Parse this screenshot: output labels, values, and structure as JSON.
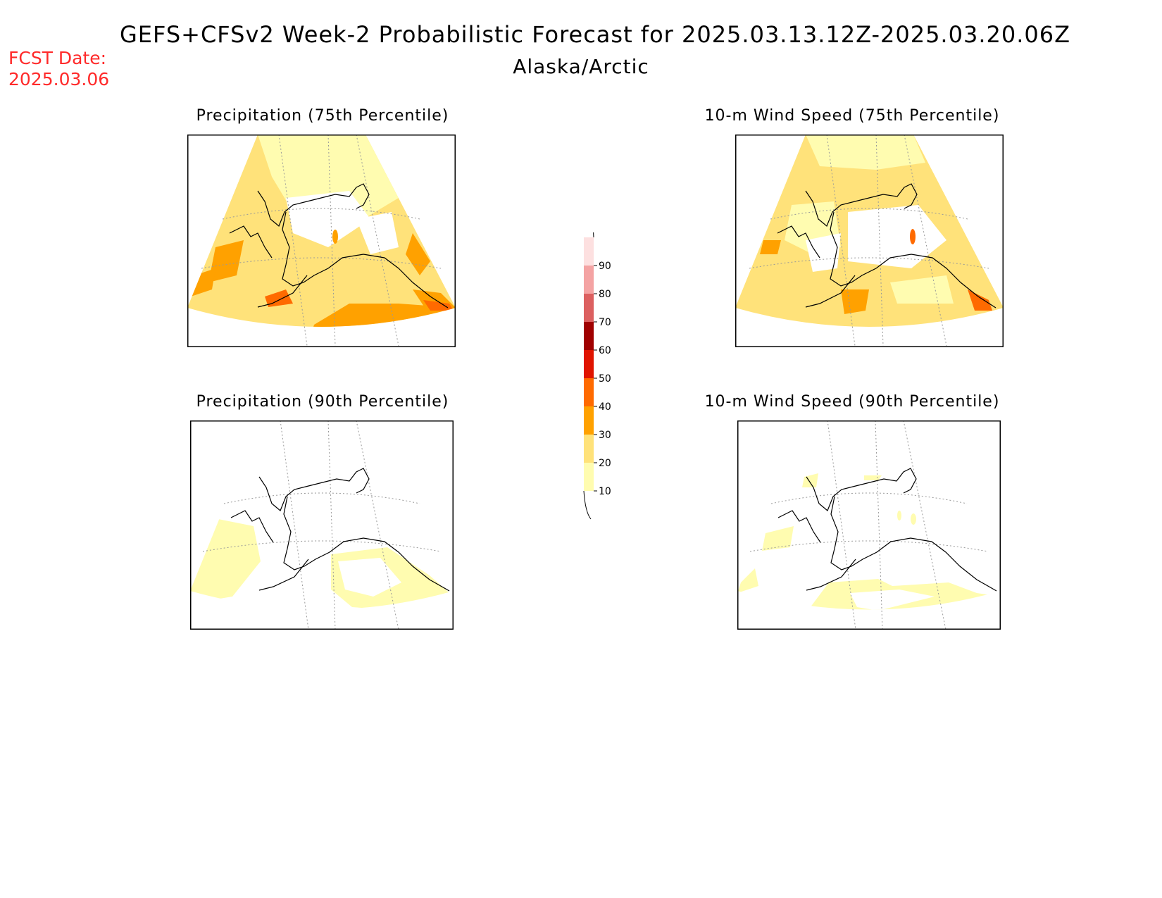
{
  "header": {
    "title": "GEFS+CFSv2 Week-2 Probabilistic Forecast for 2025.03.13.12Z-2025.03.20.06Z",
    "region": "Alaska/Arctic",
    "fcst_label": "FCST Date:",
    "fcst_date": "2025.03.06"
  },
  "panels": [
    {
      "title": "Precipitation (75th Percentile)"
    },
    {
      "title": "10-m Wind Speed (75th Percentile)"
    },
    {
      "title": "Precipitation (90th Percentile)"
    },
    {
      "title": "10-m Wind Speed (90th Percentile)"
    }
  ],
  "colorbar": {
    "levels": [
      "10",
      "20",
      "30",
      "40",
      "50",
      "60",
      "70",
      "80",
      "90"
    ],
    "colors": [
      "#fffcb0",
      "#ffe27a",
      "#ffa100",
      "#ff6a00",
      "#e01400",
      "#a00000",
      "#dc6060",
      "#f4a3a3",
      "#fde0e0"
    ]
  }
}
